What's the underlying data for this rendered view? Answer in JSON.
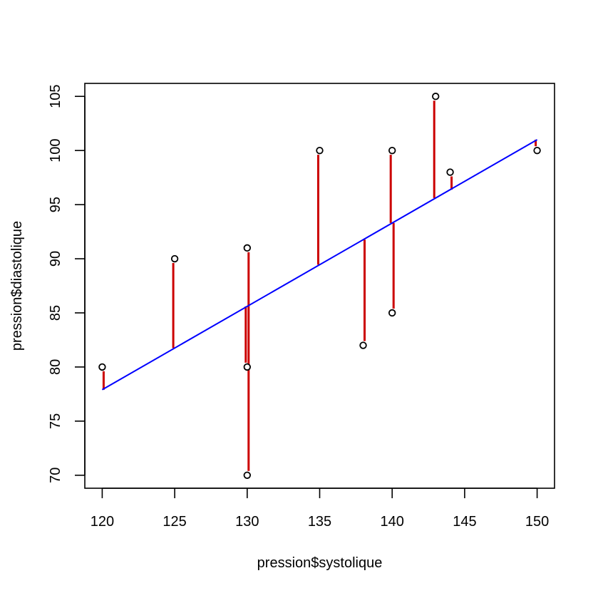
{
  "chart_data": {
    "type": "scatter",
    "xlabel": "pression$systolique",
    "ylabel": "pression$diastolique",
    "xlim": [
      118.8,
      151.2
    ],
    "ylim": [
      68.8,
      106.2
    ],
    "x_ticks": [
      120,
      125,
      130,
      135,
      140,
      145,
      150
    ],
    "y_ticks": [
      70,
      75,
      80,
      85,
      90,
      95,
      100,
      105
    ],
    "grid": false,
    "points": [
      {
        "x": 120,
        "y": 80
      },
      {
        "x": 125,
        "y": 90
      },
      {
        "x": 130,
        "y": 91
      },
      {
        "x": 130,
        "y": 80
      },
      {
        "x": 130,
        "y": 70
      },
      {
        "x": 135,
        "y": 100
      },
      {
        "x": 138,
        "y": 82
      },
      {
        "x": 140,
        "y": 100
      },
      {
        "x": 140,
        "y": 85
      },
      {
        "x": 143,
        "y": 105
      },
      {
        "x": 144,
        "y": 98
      },
      {
        "x": 150,
        "y": 100
      }
    ],
    "fit_line": {
      "x": [
        120,
        150
      ],
      "y": [
        77.9,
        101.0
      ]
    },
    "colors": {
      "points": "#000000",
      "residuals": "#cc0000",
      "fit_line": "#0000ff"
    }
  }
}
